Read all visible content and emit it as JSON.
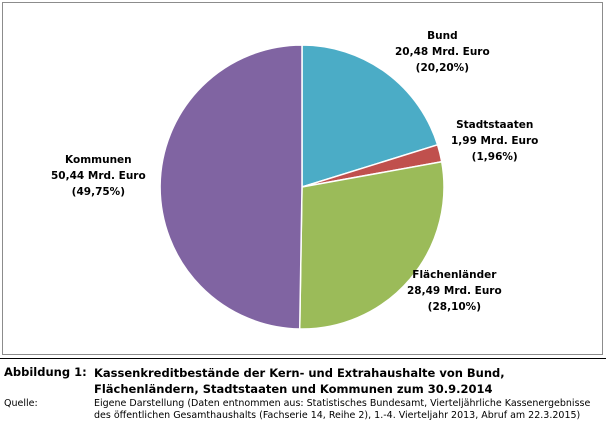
{
  "chart_data": {
    "type": "pie",
    "start_angle": "12 o'clock, clockwise",
    "slices": [
      {
        "name": "Bund",
        "value_text": "20,48 Mrd. Euro",
        "percent_text": "(20,20%)",
        "value": 20.48,
        "percent": 20.2,
        "color": "#4BACC6"
      },
      {
        "name": "Stadtstaaten",
        "value_text": "1,99 Mrd. Euro",
        "percent_text": "(1,96%)",
        "value": 1.99,
        "percent": 1.96,
        "color": "#C0504D"
      },
      {
        "name": "Flächenländer",
        "value_text": "28,49 Mrd. Euro",
        "percent_text": "(28,10%)",
        "value": 28.49,
        "percent": 28.1,
        "color": "#9BBB59"
      },
      {
        "name": "Kommunen",
        "value_text": "50,44 Mrd. Euro",
        "percent_text": "(49,75%)",
        "value": 50.44,
        "percent": 49.75,
        "color": "#8064A2"
      }
    ]
  },
  "caption": {
    "figure_label": "Abbildung 1:",
    "figure_title": "Kassenkreditbestände der Kern- und Extrahaushalte von Bund, Flächenländern, Stadtstaaten und Kommunen zum 30.9.2014",
    "source_label": "Quelle:",
    "source_text": "Eigene Darstellung (Daten entnommen aus: Statistisches Bundesamt, Vierteljährliche Kassenergebnisse des öffentlichen Gesamthaushalts (Fachserie 14, Reihe 2), 1.-4. Vierteljahr 2013, Abruf am 22.3.2015)"
  }
}
